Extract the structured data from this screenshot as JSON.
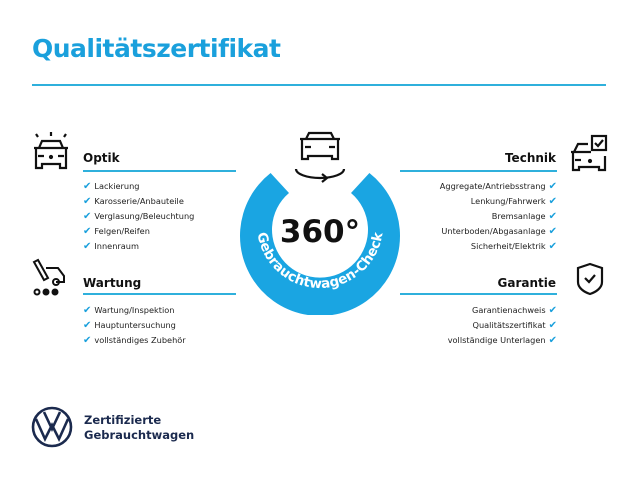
{
  "title": "Qualitätszertifikat",
  "accent_color": "#1aa0dc",
  "center": {
    "value": "360°",
    "ring_text": "Gebrauchtwagen-Check",
    "icon": "car-rotate-icon"
  },
  "sections": {
    "optik": {
      "label": "Optik",
      "icon": "car-lights-icon",
      "items": [
        "Lackierung",
        "Karosserie/Anbauteile",
        "Verglasung/Beleuchtung",
        "Felgen/Reifen",
        "Innenraum"
      ]
    },
    "wartung": {
      "label": "Wartung",
      "icon": "service-tools-icon",
      "items": [
        "Wartung/Inspektion",
        "Hauptuntersuchung",
        "vollständiges Zubehör"
      ]
    },
    "technik": {
      "label": "Technik",
      "icon": "car-checkbox-icon",
      "items": [
        "Aggregate/Antriebsstrang",
        "Lenkung/Fahrwerk",
        "Bremsanlage",
        "Unterboden/Abgasanlage",
        "Sicherheit/Elektrik"
      ]
    },
    "garantie": {
      "label": "Garantie",
      "icon": "shield-check-icon",
      "items": [
        "Garantienachweis",
        "Qualitätszertifikat",
        "vollständige Unterlagen"
      ]
    }
  },
  "check_mark": "✔",
  "brand": {
    "line1": "Zertifizierte",
    "line2": "Gebrauchtwagen",
    "logo": "vw-logo"
  }
}
